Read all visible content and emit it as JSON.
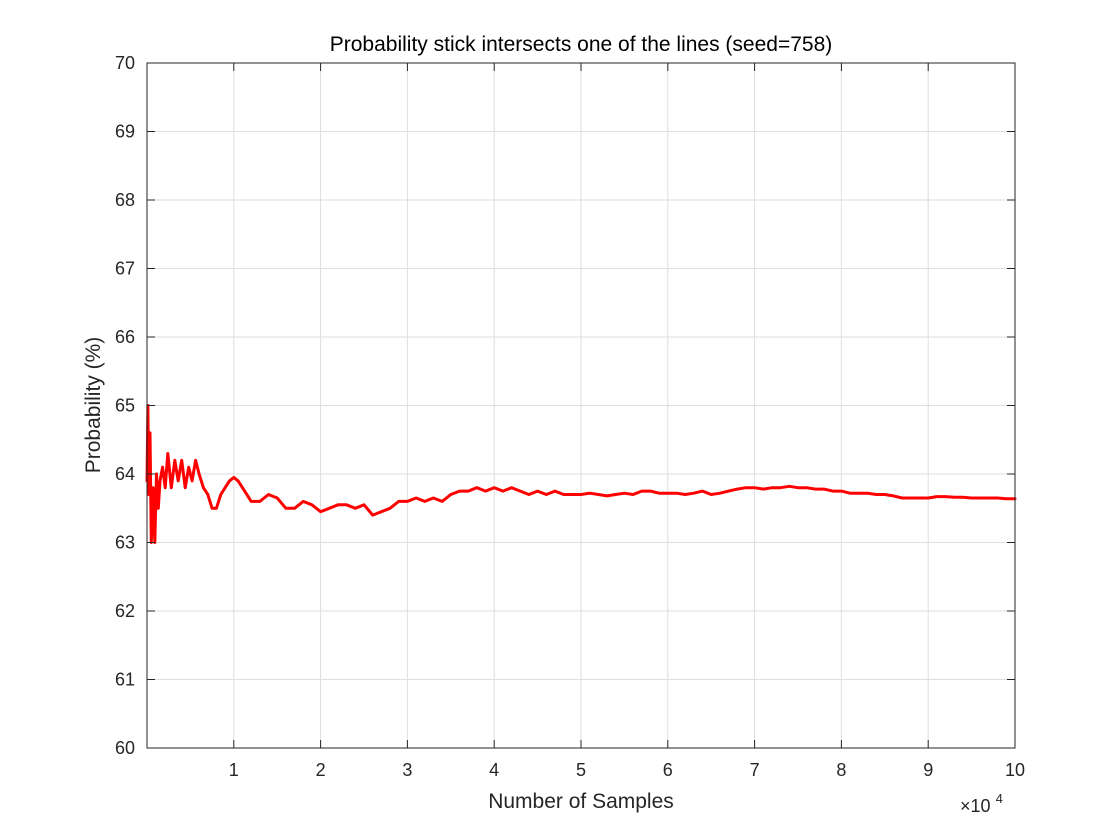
{
  "chart_data": {
    "type": "line",
    "title": "Probability stick intersects one of the lines (seed=758)",
    "xlabel": "Number of Samples",
    "ylabel": "Probability (%)",
    "x_exponent_label": {
      "base": "×10",
      "exp": "4"
    },
    "xlim": [
      1,
      100000
    ],
    "ylim": [
      60,
      70
    ],
    "x_ticks": [
      10000,
      20000,
      30000,
      40000,
      50000,
      60000,
      70000,
      80000,
      90000,
      100000
    ],
    "x_tick_labels": [
      "1",
      "2",
      "3",
      "4",
      "5",
      "6",
      "7",
      "8",
      "9",
      "10"
    ],
    "y_ticks": [
      60,
      61,
      62,
      63,
      64,
      65,
      66,
      67,
      68,
      69,
      70
    ],
    "y_tick_labels": [
      "60",
      "61",
      "62",
      "63",
      "64",
      "65",
      "66",
      "67",
      "68",
      "69",
      "70"
    ],
    "grid": true,
    "colors": {
      "line": "#ff0000",
      "grid": "#dedede",
      "axes": "#262626"
    },
    "series": [
      {
        "x": [
          1,
          100,
          200,
          350,
          500,
          700,
          900,
          1100,
          1300,
          1500,
          1800,
          2100,
          2400,
          2800,
          3200,
          3600,
          4000,
          4400,
          4800,
          5200,
          5600,
          6000,
          6500,
          7000,
          7500,
          8000,
          8500,
          9000,
          9500,
          10000,
          10500,
          11000,
          12000,
          13000,
          14000,
          15000,
          16000,
          17000,
          18000,
          19000,
          20000,
          21000,
          22000,
          23000,
          24000,
          25000,
          26000,
          27000,
          28000,
          29000,
          30000,
          31000,
          32000,
          33000,
          34000,
          35000,
          36000,
          37000,
          38000,
          39000,
          40000,
          41000,
          42000,
          43000,
          44000,
          45000,
          46000,
          47000,
          48000,
          49000,
          50000,
          51000,
          52000,
          53000,
          54000,
          55000,
          56000,
          57000,
          58000,
          59000,
          60000,
          61000,
          62000,
          63000,
          64000,
          65000,
          66000,
          67000,
          68000,
          69000,
          70000,
          71000,
          72000,
          73000,
          74000,
          75000,
          76000,
          77000,
          78000,
          79000,
          80000,
          81000,
          82000,
          83000,
          84000,
          85000,
          86000,
          87000,
          88000,
          89000,
          90000,
          91000,
          92000,
          93000,
          94000,
          95000,
          96000,
          97000,
          98000,
          99000,
          100000
        ],
        "y": [
          63.9,
          65.0,
          63.7,
          64.6,
          63.0,
          63.8,
          63.0,
          64.0,
          63.5,
          63.9,
          64.1,
          63.8,
          64.3,
          63.8,
          64.2,
          63.9,
          64.2,
          63.8,
          64.1,
          63.9,
          64.2,
          64.0,
          63.8,
          63.7,
          63.5,
          63.5,
          63.7,
          63.8,
          63.9,
          63.95,
          63.9,
          63.8,
          63.6,
          63.6,
          63.7,
          63.65,
          63.5,
          63.5,
          63.6,
          63.55,
          63.45,
          63.5,
          63.55,
          63.55,
          63.5,
          63.55,
          63.4,
          63.45,
          63.5,
          63.6,
          63.6,
          63.65,
          63.6,
          63.65,
          63.6,
          63.7,
          63.75,
          63.75,
          63.8,
          63.75,
          63.8,
          63.75,
          63.8,
          63.75,
          63.7,
          63.75,
          63.7,
          63.75,
          63.7,
          63.7,
          63.7,
          63.72,
          63.7,
          63.68,
          63.7,
          63.72,
          63.7,
          63.75,
          63.75,
          63.72,
          63.72,
          63.72,
          63.7,
          63.72,
          63.75,
          63.7,
          63.72,
          63.75,
          63.78,
          63.8,
          63.8,
          63.78,
          63.8,
          63.8,
          63.82,
          63.8,
          63.8,
          63.78,
          63.78,
          63.75,
          63.75,
          63.72,
          63.72,
          63.72,
          63.7,
          63.7,
          63.68,
          63.65,
          63.65,
          63.65,
          63.65,
          63.67,
          63.67,
          63.66,
          63.66,
          63.65,
          63.65,
          63.65,
          63.65,
          63.64,
          63.64
        ]
      }
    ]
  }
}
